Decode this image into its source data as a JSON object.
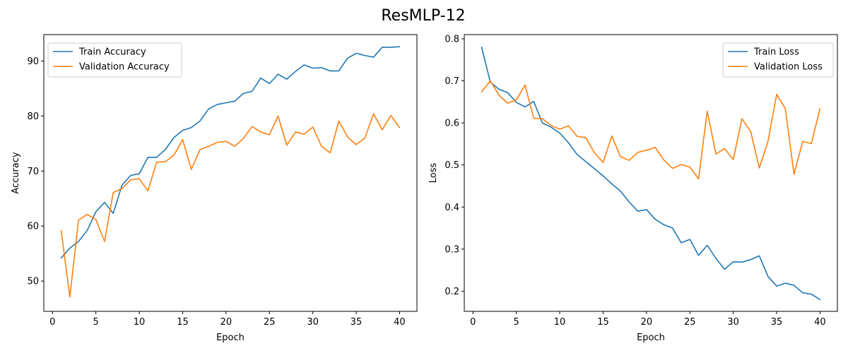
{
  "figure": {
    "title": "ResMLP-12"
  },
  "chart_data": [
    {
      "type": "line",
      "title": "",
      "xlabel": "Epoch",
      "ylabel": "Accuracy",
      "xlim": [
        -1,
        42
      ],
      "ylim": [
        44.5,
        94.8
      ],
      "xticks": [
        0,
        5,
        10,
        15,
        20,
        25,
        30,
        35,
        40
      ],
      "yticks": [
        50,
        60,
        70,
        80,
        90
      ],
      "grid": false,
      "legend_position": "upper-left",
      "x": [
        1,
        2,
        3,
        4,
        5,
        6,
        7,
        8,
        9,
        10,
        11,
        12,
        13,
        14,
        15,
        16,
        17,
        18,
        19,
        20,
        21,
        22,
        23,
        24,
        25,
        26,
        27,
        28,
        29,
        30,
        31,
        32,
        33,
        34,
        35,
        36,
        37,
        38,
        39,
        40
      ],
      "series": [
        {
          "name": "Train Accuracy",
          "color": "#1f77b4",
          "values": [
            54.2,
            56.0,
            57.2,
            59.2,
            62.6,
            64.3,
            62.3,
            67.4,
            69.2,
            69.5,
            72.5,
            72.5,
            73.9,
            76.1,
            77.4,
            77.9,
            79.1,
            81.3,
            82.1,
            82.4,
            82.7,
            84.1,
            84.5,
            86.9,
            85.9,
            87.6,
            86.7,
            88.1,
            89.3,
            88.7,
            88.8,
            88.2,
            88.2,
            90.5,
            91.4,
            91.0,
            90.7,
            92.5,
            92.5,
            92.6
          ]
        },
        {
          "name": "Validation Accuracy",
          "color": "#ff7f0e",
          "values": [
            59.2,
            47.1,
            61.1,
            62.1,
            61.2,
            57.2,
            66.1,
            66.8,
            68.4,
            68.6,
            66.4,
            71.6,
            71.7,
            72.9,
            75.7,
            70.3,
            73.9,
            74.5,
            75.2,
            75.4,
            74.5,
            75.9,
            78.1,
            77.1,
            76.6,
            80.0,
            74.7,
            77.1,
            76.7,
            78.0,
            74.5,
            73.3,
            79.1,
            76.2,
            74.8,
            76.0,
            80.4,
            77.5,
            80.1,
            77.9
          ]
        }
      ]
    },
    {
      "type": "line",
      "title": "",
      "xlabel": "Epoch",
      "ylabel": "Loss",
      "xlim": [
        -1,
        42
      ],
      "ylim": [
        0.152,
        0.81
      ],
      "xticks": [
        0,
        5,
        10,
        15,
        20,
        25,
        30,
        35,
        40
      ],
      "yticks": [
        0.2,
        0.3,
        0.4,
        0.5,
        0.6,
        0.7,
        0.8
      ],
      "grid": false,
      "legend_position": "upper-right",
      "x": [
        1,
        2,
        3,
        4,
        5,
        6,
        7,
        8,
        9,
        10,
        11,
        12,
        13,
        14,
        15,
        16,
        17,
        18,
        19,
        20,
        21,
        22,
        23,
        24,
        25,
        26,
        27,
        28,
        29,
        30,
        31,
        32,
        33,
        34,
        35,
        36,
        37,
        38,
        39,
        40
      ],
      "series": [
        {
          "name": "Train Loss",
          "color": "#1f77b4",
          "values": [
            0.78,
            0.697,
            0.68,
            0.672,
            0.649,
            0.638,
            0.651,
            0.6,
            0.59,
            0.576,
            0.553,
            0.525,
            0.508,
            0.491,
            0.474,
            0.455,
            0.438,
            0.412,
            0.39,
            0.394,
            0.371,
            0.358,
            0.35,
            0.315,
            0.323,
            0.285,
            0.309,
            0.278,
            0.252,
            0.27,
            0.269,
            0.275,
            0.284,
            0.235,
            0.212,
            0.219,
            0.214,
            0.196,
            0.193,
            0.18
          ]
        },
        {
          "name": "Validation Loss",
          "color": "#ff7f0e",
          "values": [
            0.674,
            0.7,
            0.666,
            0.647,
            0.655,
            0.69,
            0.611,
            0.61,
            0.594,
            0.585,
            0.593,
            0.568,
            0.565,
            0.529,
            0.506,
            0.569,
            0.52,
            0.511,
            0.53,
            0.535,
            0.542,
            0.512,
            0.492,
            0.501,
            0.495,
            0.467,
            0.628,
            0.526,
            0.539,
            0.513,
            0.61,
            0.58,
            0.493,
            0.556,
            0.668,
            0.634,
            0.478,
            0.556,
            0.551,
            0.634
          ]
        }
      ]
    }
  ]
}
